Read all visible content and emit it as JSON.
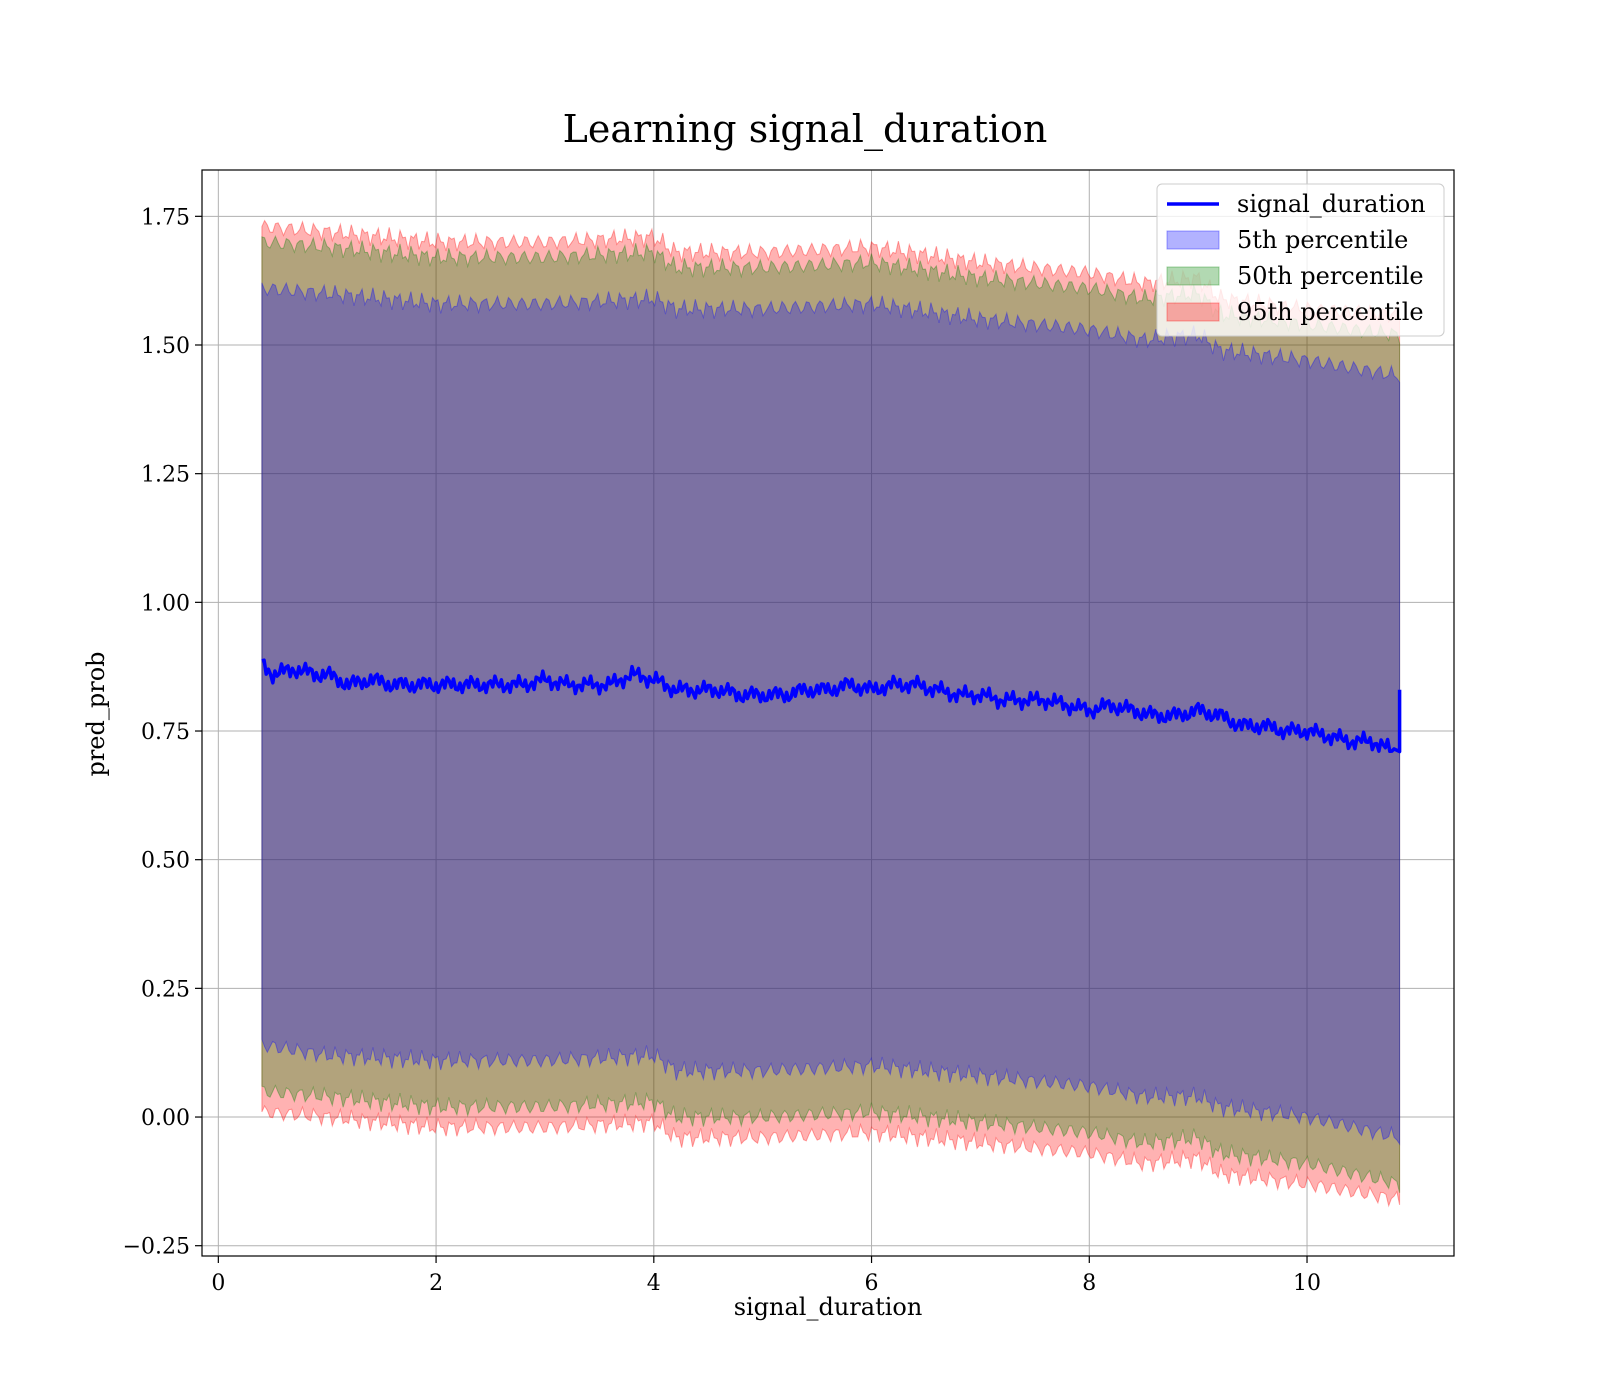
{
  "chart_data": {
    "type": "area",
    "title": "Learning signal_duration",
    "xlabel": "signal_duration",
    "ylabel": "pred_prob",
    "xlim": [
      -0.15,
      11.35
    ],
    "ylim": [
      -0.27,
      1.84
    ],
    "xticks": [
      0,
      2,
      4,
      6,
      8,
      10
    ],
    "xtick_labels": [
      "0",
      "2",
      "4",
      "6",
      "8",
      "10"
    ],
    "yticks": [
      -0.25,
      0.0,
      0.25,
      0.5,
      0.75,
      1.0,
      1.25,
      1.5,
      1.75
    ],
    "ytick_labels": [
      "−0.25",
      "0.00",
      "0.25",
      "0.50",
      "0.75",
      "1.00",
      "1.25",
      "1.50",
      "1.75"
    ],
    "grid": true,
    "legend_position": "top-right",
    "legend": [
      {
        "label": "signal_duration",
        "kind": "line",
        "color": "#0000ff"
      },
      {
        "label": "5th percentile",
        "kind": "patch",
        "color": "#0000ff"
      },
      {
        "label": "50th percentile",
        "kind": "patch",
        "color": "#008000"
      },
      {
        "label": "95th percentile",
        "kind": "patch",
        "color": "#ff0000"
      }
    ],
    "line": {
      "name": "signal_duration",
      "color": "#0000ff",
      "x": [
        0.4,
        0.5,
        0.7,
        0.9,
        1.0,
        1.2,
        1.4,
        1.6,
        1.8,
        2.0,
        2.2,
        2.4,
        2.6,
        2.8,
        3.0,
        3.2,
        3.4,
        3.6,
        3.8,
        4.0,
        4.2,
        4.4,
        4.6,
        4.8,
        5.0,
        5.2,
        5.4,
        5.6,
        5.8,
        6.0,
        6.2,
        6.4,
        6.6,
        6.8,
        7.0,
        7.2,
        7.4,
        7.6,
        7.8,
        8.0,
        8.2,
        8.4,
        8.6,
        8.8,
        9.0,
        9.2,
        9.4,
        9.6,
        9.8,
        10.0,
        10.2,
        10.4,
        10.6,
        10.8,
        10.85
      ],
      "y": [
        0.88,
        0.86,
        0.87,
        0.86,
        0.86,
        0.84,
        0.85,
        0.84,
        0.84,
        0.84,
        0.84,
        0.84,
        0.84,
        0.84,
        0.85,
        0.84,
        0.84,
        0.84,
        0.86,
        0.85,
        0.83,
        0.83,
        0.83,
        0.82,
        0.82,
        0.82,
        0.83,
        0.83,
        0.84,
        0.83,
        0.84,
        0.84,
        0.83,
        0.82,
        0.82,
        0.81,
        0.81,
        0.81,
        0.8,
        0.79,
        0.8,
        0.79,
        0.78,
        0.78,
        0.79,
        0.78,
        0.76,
        0.76,
        0.75,
        0.75,
        0.74,
        0.73,
        0.73,
        0.71,
        0.83
      ]
    },
    "bands": [
      {
        "name": "5th percentile",
        "color": "#0000ff",
        "x": [
          0.4,
          1.0,
          2.0,
          3.0,
          4.0,
          4.2,
          5.0,
          6.0,
          7.0,
          8.0,
          8.5,
          9.0,
          9.2,
          10.0,
          10.85
        ],
        "upper": [
          1.61,
          1.6,
          1.58,
          1.58,
          1.59,
          1.57,
          1.57,
          1.58,
          1.55,
          1.53,
          1.51,
          1.52,
          1.49,
          1.47,
          1.44
        ],
        "lower": [
          0.14,
          0.12,
          0.11,
          0.11,
          0.12,
          0.09,
          0.09,
          0.1,
          0.08,
          0.06,
          0.04,
          0.04,
          0.02,
          0.0,
          -0.04
        ]
      },
      {
        "name": "50th percentile",
        "color": "#008000",
        "x": [
          0.4,
          1.0,
          2.0,
          3.0,
          4.0,
          4.2,
          5.0,
          6.0,
          7.0,
          8.0,
          8.5,
          9.0,
          9.2,
          10.0,
          10.85
        ],
        "upper": [
          1.7,
          1.69,
          1.67,
          1.67,
          1.68,
          1.65,
          1.65,
          1.66,
          1.63,
          1.61,
          1.59,
          1.6,
          1.56,
          1.54,
          1.52
        ],
        "lower": [
          0.05,
          0.04,
          0.02,
          0.02,
          0.03,
          0.0,
          0.0,
          0.01,
          -0.01,
          -0.03,
          -0.05,
          -0.04,
          -0.07,
          -0.09,
          -0.13
        ]
      },
      {
        "name": "95th percentile",
        "color": "#ff0000",
        "x": [
          0.4,
          1.0,
          2.0,
          3.0,
          4.0,
          4.2,
          5.0,
          6.0,
          7.0,
          8.0,
          8.5,
          9.0,
          9.2,
          10.0,
          10.85
        ],
        "upper": [
          1.73,
          1.72,
          1.7,
          1.7,
          1.71,
          1.68,
          1.68,
          1.69,
          1.66,
          1.64,
          1.62,
          1.63,
          1.59,
          1.57,
          1.56
        ],
        "lower": [
          0.01,
          0.0,
          -0.02,
          -0.02,
          -0.01,
          -0.04,
          -0.04,
          -0.03,
          -0.05,
          -0.07,
          -0.09,
          -0.08,
          -0.11,
          -0.13,
          -0.16
        ]
      }
    ]
  }
}
